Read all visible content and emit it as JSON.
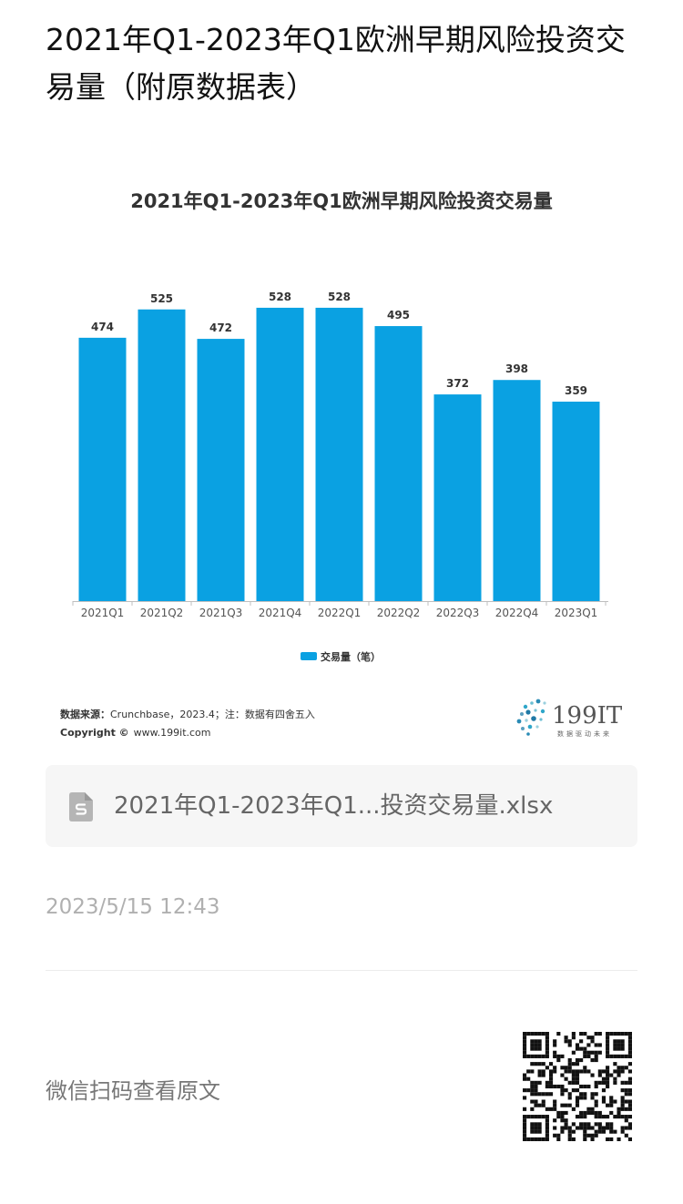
{
  "article": {
    "title": "2021年Q1-2023年Q1欧洲早期风险投资交易量（附原数据表）",
    "attachment_name": "2021年Q1-2023年Q1...投资交易量.xlsx",
    "timestamp": "2023/5/15 12:43",
    "scan_text": "微信扫码查看原文"
  },
  "chart_data": {
    "type": "bar",
    "title": "2021年Q1-2023年Q1欧洲早期风险投资交易量",
    "categories": [
      "2021Q1",
      "2021Q2",
      "2021Q3",
      "2021Q4",
      "2022Q1",
      "2022Q2",
      "2022Q3",
      "2022Q4",
      "2023Q1"
    ],
    "series": [
      {
        "name": "交易量（笔）",
        "values": [
          474,
          525,
          472,
          528,
          528,
          495,
          372,
          398,
          359
        ],
        "color": "#0aa1e2"
      }
    ],
    "ylim": [
      0,
      600
    ],
    "grid": false,
    "legend": "bottom",
    "source_label": "数据来源：",
    "source_text": "Crunchbase，2023.4；注：数据有四舍五入",
    "copyright_label": "Copyright ©",
    "copyright_text": "www.199it.com",
    "logo_text": "199IT",
    "logo_tagline": "数据驱动未来"
  },
  "colors": {
    "bar": "#0aa1e2",
    "axis": "#bfbfbf",
    "label": "#333333"
  },
  "icons": {
    "attachment": "spreadsheet-file-icon",
    "qr": "qr-code"
  }
}
